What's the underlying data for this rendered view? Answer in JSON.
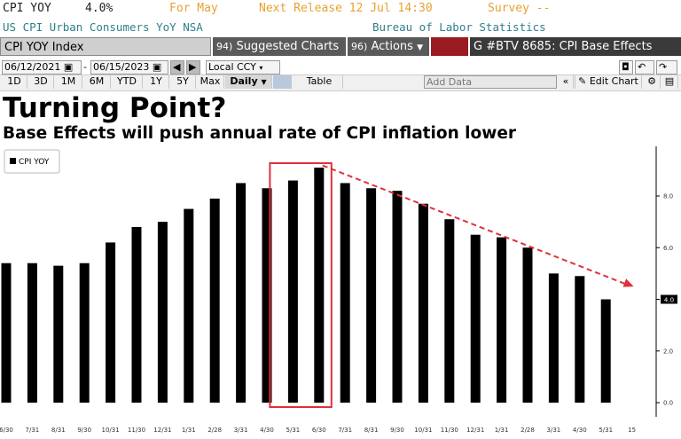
{
  "header": {
    "ticker": "CPI YOY",
    "last_value": "4.0%",
    "period": "For May",
    "next_release": "Next Release 12 Jul 14:30",
    "survey": "Survey --",
    "description": "US CPI Urban Consumers YoY NSA",
    "source": "Bureau of Labor Statistics"
  },
  "toolbar": {
    "index_name": "CPI YOY Index",
    "suggested_charts": "Suggested Charts",
    "actions": "Actions",
    "chart_id": "G #BTV 8685: CPI Base Effects",
    "colors": {
      "red_block": "#9b1b22",
      "bar_bg": "#555555",
      "dark_bar": "#3a3a3a"
    }
  },
  "controls": {
    "start_date": "06/12/2021",
    "end_date": "06/15/2023",
    "currency": "Local CCY",
    "ranges": [
      "1D",
      "3D",
      "1M",
      "6M",
      "YTD",
      "1Y",
      "5Y",
      "Max"
    ],
    "frequency": "Daily",
    "table_label": "Table",
    "add_data_placeholder": "Add Data",
    "edit_chart": "Edit Chart"
  },
  "chart_data": {
    "type": "bar",
    "title": "Turning Point?",
    "subtitle": "Base Effects will push annual rate of CPI inflation lower",
    "legend": [
      "CPI YOY"
    ],
    "legend_position": "top-left",
    "categories": [
      "6/30",
      "7/31",
      "8/31",
      "9/30",
      "10/31",
      "11/30",
      "12/31",
      "1/31",
      "2/28",
      "3/31",
      "4/30",
      "5/31",
      "6/30",
      "7/31",
      "8/31",
      "9/30",
      "10/31",
      "11/30",
      "12/31",
      "1/31",
      "2/28",
      "3/31",
      "4/30",
      "5/31",
      "15"
    ],
    "series": [
      {
        "name": "CPI YOY",
        "values": [
          5.4,
          5.4,
          5.3,
          5.4,
          6.2,
          6.8,
          7.0,
          7.5,
          7.9,
          8.5,
          8.3,
          8.6,
          9.1,
          8.5,
          8.3,
          8.2,
          7.7,
          7.1,
          6.5,
          6.4,
          6.0,
          5.0,
          4.9,
          4.0,
          null
        ]
      }
    ],
    "y_ticks": [
      "0.0",
      "2.0",
      "4.0",
      "6.0",
      "8.0"
    ],
    "ylim": [
      0,
      10
    ],
    "last_value_label": "4.0",
    "highlight_range": [
      11,
      12
    ],
    "trend_arrow": {
      "from_index": 12,
      "to_index": 24,
      "from_value": 9.2,
      "to_value": 4.5
    },
    "colors": {
      "bar": "#000000",
      "highlight": "#e0303a",
      "arrow": "#e0303a"
    }
  }
}
